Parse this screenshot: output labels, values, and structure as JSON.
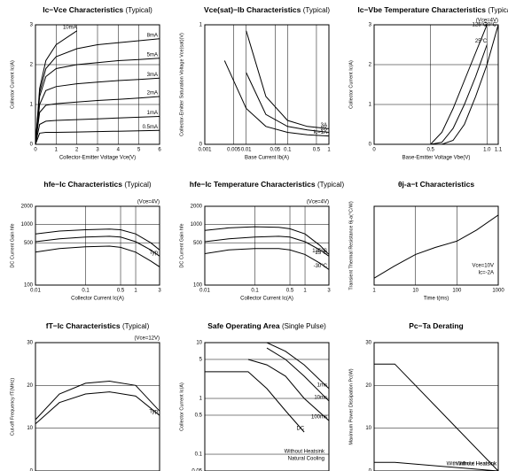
{
  "chart_data": [
    {
      "type": "line",
      "title": "Ic−Vce Characteristics",
      "subtitle": "(Typical)",
      "x_label": "Collector-Emitter Voltage Vce(V)",
      "y_label": "Collector Current Ic(A)",
      "xlim": [
        0,
        6
      ],
      "xticks": [
        0,
        1,
        2,
        3,
        4,
        5,
        6
      ],
      "ylim": [
        0,
        3
      ],
      "yticks": [
        0,
        1,
        2,
        3
      ],
      "grid": true,
      "x": [
        0,
        0.2,
        0.5,
        1,
        2,
        3,
        4,
        5,
        6
      ],
      "series": [
        {
          "name": "10mA",
          "color": "#000",
          "values": [
            0,
            1.4,
            2.1,
            2.5,
            2.85,
            null,
            null,
            null,
            null
          ]
        },
        {
          "name": "8mA",
          "color": "#000",
          "values": [
            0,
            1.3,
            1.9,
            2.2,
            2.4,
            2.5,
            2.55,
            2.6,
            2.65
          ]
        },
        {
          "name": "5mA",
          "color": "#000",
          "values": [
            0,
            1.2,
            1.7,
            1.9,
            2.0,
            2.05,
            2.1,
            2.13,
            2.16
          ]
        },
        {
          "name": "3mA",
          "color": "#000",
          "values": [
            0,
            1.0,
            1.35,
            1.45,
            1.52,
            1.56,
            1.6,
            1.63,
            1.66
          ]
        },
        {
          "name": "2mA",
          "color": "#000",
          "values": [
            0,
            0.8,
            0.98,
            1.02,
            1.06,
            1.1,
            1.13,
            1.16,
            1.2
          ]
        },
        {
          "name": "1mA",
          "color": "#000",
          "values": [
            0,
            0.5,
            0.58,
            0.6,
            0.62,
            0.64,
            0.66,
            0.68,
            0.7
          ]
        },
        {
          "name": "0.5mA",
          "color": "#000",
          "values": [
            0,
            0.28,
            0.3,
            0.3,
            0.31,
            0.32,
            0.33,
            0.34,
            0.35
          ]
        }
      ]
    },
    {
      "type": "line",
      "title": "Vce(sat)−Ib Characteristics",
      "subtitle": "(Typical)",
      "x_label": "Base Current Ib(A)",
      "y_label": "Collector-Emitter Saturation Voltage Vce(sat)(V)",
      "xlog": true,
      "xlim": [
        0.001,
        1
      ],
      "xticks": [
        0.001,
        0.005,
        0.01,
        0.05,
        0.1,
        0.5,
        1
      ],
      "ylim": [
        0,
        1
      ],
      "yticks": [
        0,
        1
      ],
      "grid": true,
      "x": [
        0.001,
        0.003,
        0.01,
        0.03,
        0.1,
        0.3,
        1
      ],
      "series": [
        {
          "name": "Ic=1A",
          "color": "#000",
          "values": [
            null,
            0.7,
            0.3,
            0.15,
            0.1,
            0.08,
            0.07
          ]
        },
        {
          "name": "2A",
          "color": "#000",
          "values": [
            null,
            null,
            0.6,
            0.25,
            0.15,
            0.12,
            0.1
          ]
        },
        {
          "name": "3A",
          "color": "#000",
          "values": [
            null,
            null,
            0.95,
            0.4,
            0.2,
            0.15,
            0.13
          ]
        }
      ]
    },
    {
      "type": "line",
      "title": "Ic−Vbe Temperature Characteristics",
      "subtitle": "(Typical)",
      "annotations": [
        "(Vce=4V)"
      ],
      "x_label": "Base-Emitter Voltage Vbe(V)",
      "y_label": "Collector Current Ic(A)",
      "xlim": [
        0,
        1.1
      ],
      "xticks": [
        0,
        0.5,
        {
          "value": 1,
          "label": "1.0"
        },
        1.1
      ],
      "ylim": [
        0,
        3
      ],
      "yticks": [
        0,
        1,
        2,
        3
      ],
      "grid": true,
      "x": [
        0.5,
        0.6,
        0.7,
        0.8,
        0.9,
        1.0,
        1.1
      ],
      "series": [
        {
          "name": "125°C",
          "color": "#000",
          "values": [
            0,
            0.3,
            0.9,
            1.6,
            2.3,
            3,
            null
          ]
        },
        {
          "name": "25°C",
          "color": "#000",
          "values": [
            0,
            0.05,
            0.4,
            1.0,
            1.7,
            2.5,
            null
          ]
        },
        {
          "name": "-30°C",
          "color": "#000",
          "values": [
            0,
            0,
            0.1,
            0.5,
            1.2,
            2.0,
            3
          ]
        }
      ]
    },
    {
      "type": "line",
      "title": "hfe−Ic Characteristics",
      "subtitle": "(Typical)",
      "annotations": [
        "(Vce=4V)"
      ],
      "x_label": "Collector Current Ic(A)",
      "y_label": "DC Current Gain hfe",
      "xlog": true,
      "xlim": [
        0.01,
        3
      ],
      "xticks": [
        0.01,
        0.1,
        0.5,
        1,
        3
      ],
      "ylog": true,
      "ylim": [
        100,
        2000
      ],
      "yticks": [
        100,
        500,
        1000,
        2000
      ],
      "grid": true,
      "x": [
        0.01,
        0.03,
        0.1,
        0.3,
        0.5,
        1,
        2,
        3
      ],
      "series": [
        {
          "color": "#000",
          "values": [
            700,
            780,
            820,
            840,
            820,
            700,
            500,
            380
          ]
        },
        {
          "name": "Typ",
          "color": "#000",
          "values": [
            520,
            580,
            620,
            640,
            620,
            520,
            380,
            300
          ]
        },
        {
          "color": "#000",
          "values": [
            350,
            400,
            430,
            440,
            420,
            350,
            250,
            200
          ]
        }
      ]
    },
    {
      "type": "line",
      "title": "hfe−Ic Temperature Characteristics",
      "subtitle": "(Typical)",
      "annotations": [
        "(Vce=4V)"
      ],
      "x_label": "Collector Current Ic(A)",
      "y_label": "DC Current Gain hfe",
      "xlog": true,
      "xlim": [
        0.01,
        3
      ],
      "xticks": [
        0.01,
        0.1,
        0.5,
        1,
        3
      ],
      "ylog": true,
      "ylim": [
        100,
        2000
      ],
      "yticks": [
        100,
        500,
        1000,
        2000
      ],
      "grid": true,
      "x": [
        0.01,
        0.03,
        0.1,
        0.3,
        0.5,
        1,
        2,
        3
      ],
      "series": [
        {
          "name": "125°C",
          "color": "#000",
          "values": [
            800,
            880,
            920,
            900,
            850,
            700,
            450,
            320
          ]
        },
        {
          "name": "25°C",
          "color": "#000",
          "values": [
            520,
            580,
            620,
            640,
            620,
            520,
            380,
            300
          ]
        },
        {
          "name": "-30°C",
          "color": "#000",
          "values": [
            330,
            380,
            400,
            400,
            380,
            320,
            230,
            180
          ]
        }
      ]
    },
    {
      "type": "line",
      "title": "θj-a−t Characteristics",
      "annotations": [
        "Vce=10V",
        "Ic=-2A"
      ],
      "x_label": "Time t(ms)",
      "y_label": "Transient Thermal Resistance θj-a(°C/W)",
      "xlog": true,
      "xlim": [
        1,
        1000
      ],
      "xticks": [
        1,
        10,
        100,
        1000
      ],
      "ylog": true,
      "ylim": [
        0.1,
        10
      ],
      "grid": true,
      "x": [
        1,
        3,
        10,
        30,
        100,
        300,
        1000
      ],
      "series": [
        {
          "color": "#000",
          "values": [
            0.15,
            0.3,
            0.6,
            0.9,
            1.3,
            2.5,
            6
          ]
        }
      ]
    },
    {
      "type": "line",
      "title": "fT−Ic Characteristics",
      "subtitle": "(Typical)",
      "annotations": [
        "(Vce=12V)"
      ],
      "y_label": "Cut-off Frequency fT(MHz)",
      "xlog": true,
      "xlim": [
        0.01,
        3
      ],
      "ylim": [
        0,
        30
      ],
      "yticks": [
        0,
        10,
        20,
        30
      ],
      "grid": true,
      "x": [
        0.01,
        0.03,
        0.1,
        0.3,
        1,
        3
      ],
      "series": [
        {
          "color": "#000",
          "values": [
            12,
            18,
            20.5,
            21,
            20,
            14
          ]
        },
        {
          "name": "Typ",
          "color": "#000",
          "values": [
            11,
            16,
            18,
            18.5,
            17.5,
            13
          ]
        }
      ]
    },
    {
      "type": "line",
      "title": "Safe Operating Area",
      "subtitle": "(Single Pulse)",
      "annotations": [
        "Without Heatsink",
        "Natural Cooling"
      ],
      "y_label": "Collector Current Ic(A)",
      "xlog": true,
      "xlim": [
        1,
        100
      ],
      "ylog": true,
      "ylim": [
        0.05,
        10
      ],
      "yticks": [
        0.05,
        0.1,
        0.5,
        1,
        5,
        10
      ],
      "grid": true,
      "x": [
        1,
        5,
        10,
        20,
        40,
        100
      ],
      "series": [
        {
          "name": "DC",
          "color": "#000",
          "values": [
            3,
            3,
            1.5,
            0.6,
            0.25,
            null
          ]
        },
        {
          "name": "100ms",
          "color": "#000",
          "values": [
            null,
            5,
            4,
            2.5,
            1,
            0.4
          ]
        },
        {
          "name": "10ms",
          "color": "#000",
          "values": [
            null,
            null,
            8,
            5,
            2.5,
            0.9
          ]
        },
        {
          "name": "1ms",
          "color": "#000",
          "values": [
            null,
            null,
            10,
            7,
            4,
            1.5
          ]
        }
      ]
    },
    {
      "type": "line",
      "title": "Pc−Ta Derating",
      "y_label": "Maximum Power Dissipation Pc(W)",
      "xlim": [
        0,
        150
      ],
      "ylim": [
        0,
        30
      ],
      "yticks": [
        0,
        10,
        20,
        30
      ],
      "grid": true,
      "x": [
        0,
        25,
        150
      ],
      "series": [
        {
          "name": "With Infinite Heatsink",
          "color": "#000",
          "values": [
            25,
            25,
            0
          ]
        },
        {
          "name": "Without Heatsink",
          "color": "#000",
          "values": [
            2,
            2,
            0
          ]
        }
      ]
    }
  ]
}
